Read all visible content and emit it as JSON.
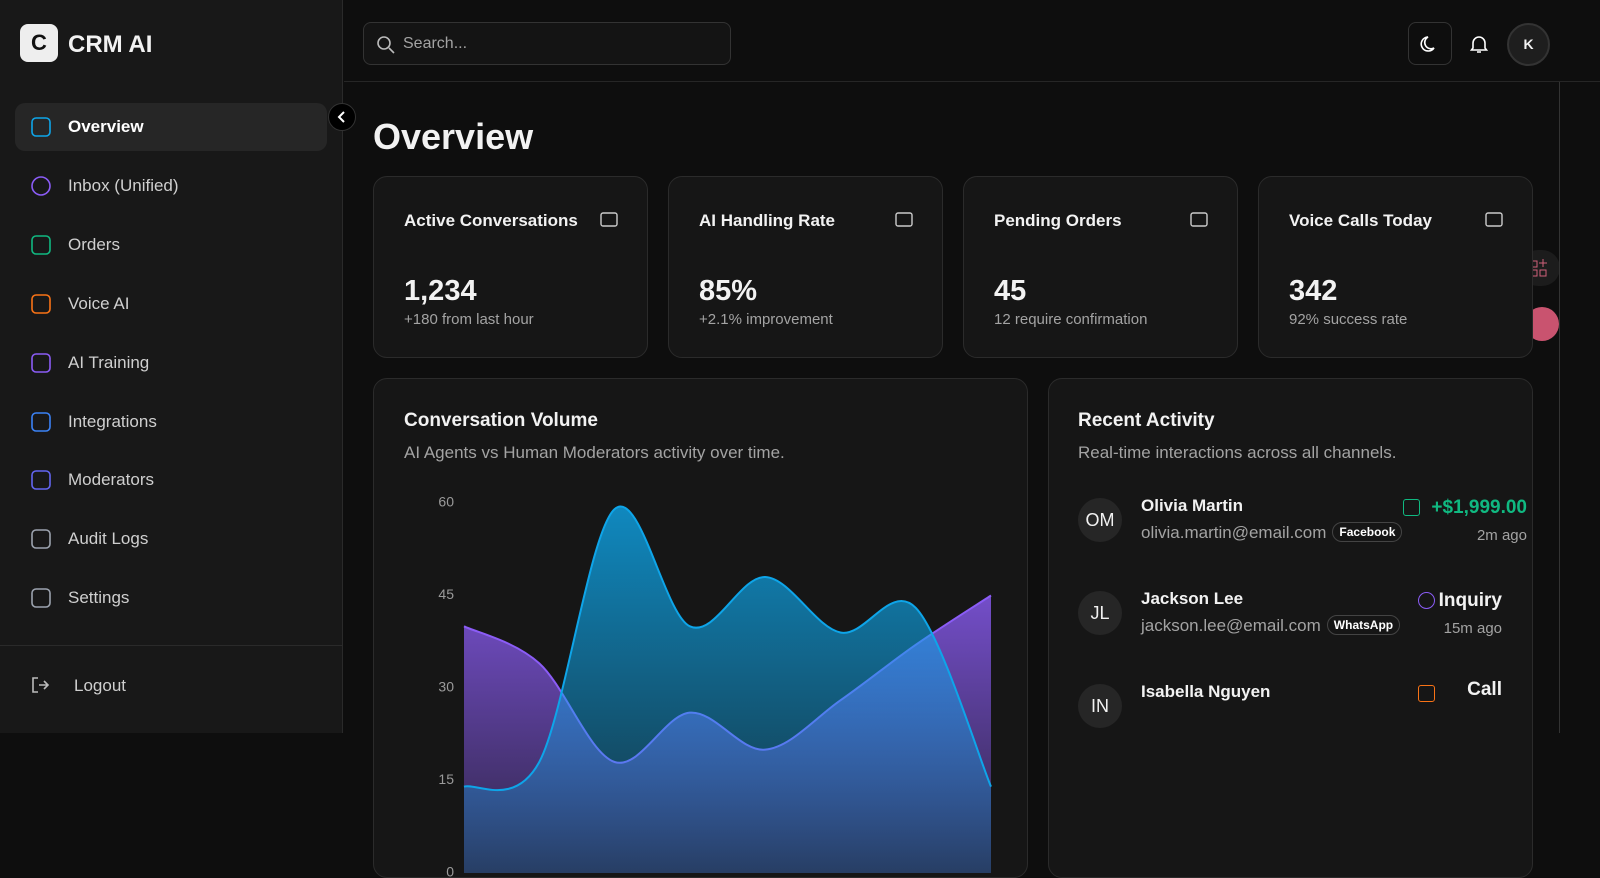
{
  "app": {
    "logo_letter": "C",
    "name": "CRM AI"
  },
  "nav": [
    "Overview",
    "Inbox (Unified)",
    "Orders",
    "Voice AI",
    "AI Training",
    "Integrations",
    "Moderators",
    "Audit Logs",
    "Settings"
  ],
  "logout": "Logout",
  "header": {
    "search_placeholder": "Search...",
    "avatar": "K"
  },
  "page_title": "Overview",
  "stats": [
    {
      "title": "Active Conversations",
      "value": "1,234",
      "note": "+180 from last hour"
    },
    {
      "title": "AI Handling Rate",
      "value": "85%",
      "note": "+2.1% improvement"
    },
    {
      "title": "Pending Orders",
      "value": "45",
      "note": "12 require confirmation"
    },
    {
      "title": "Voice Calls Today",
      "value": "342",
      "note": "92% success rate"
    }
  ],
  "chart_data": {
    "type": "area",
    "title": "Conversation Volume",
    "subtitle": "AI Agents vs Human Moderators activity over time.",
    "series": [
      {
        "color": "#8b5cf6",
        "values": [
          40,
          34,
          18,
          26,
          20,
          28,
          37,
          45
        ]
      },
      {
        "color": "#0ea5e9",
        "values": [
          14,
          18,
          59,
          40,
          48,
          39,
          43,
          14
        ]
      }
    ],
    "ylim": [
      0,
      60
    ],
    "yticks": [
      0,
      15,
      30,
      45,
      60
    ]
  },
  "activity": {
    "title": "Recent Activity",
    "subtitle": "Real-time interactions across all channels.",
    "items": [
      {
        "initials": "OM",
        "name": "Olivia Martin",
        "email": "olivia.martin@email.com",
        "channel": "Facebook",
        "detail": "+$1,999.00",
        "time": "2m ago"
      },
      {
        "initials": "JL",
        "name": "Jackson Lee",
        "email": "jackson.lee@email.com",
        "channel": "WhatsApp",
        "detail": "Inquiry",
        "time": "15m ago"
      },
      {
        "initials": "IN",
        "name": "Isabella Nguyen",
        "detail": "Call"
      }
    ]
  }
}
